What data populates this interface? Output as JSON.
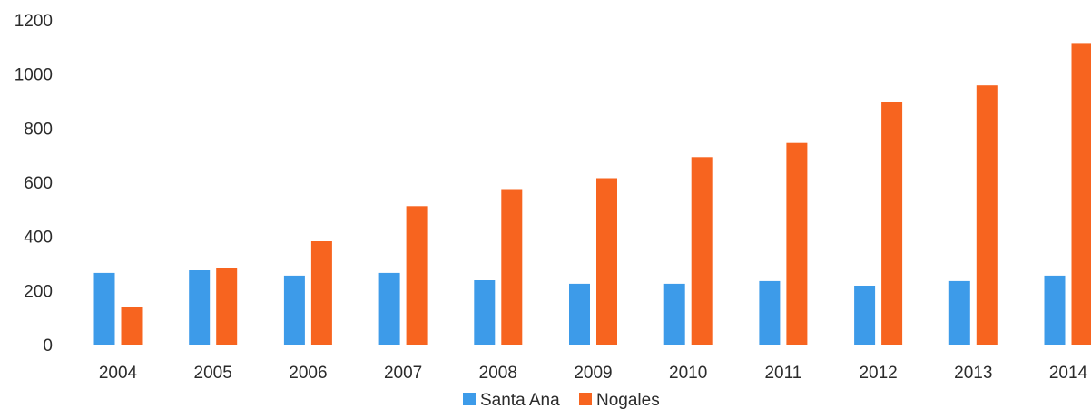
{
  "chart_data": {
    "type": "bar",
    "categories": [
      "2004",
      "2005",
      "2006",
      "2007",
      "2008",
      "2009",
      "2010",
      "2011",
      "2012",
      "2013",
      "2014"
    ],
    "series": [
      {
        "name": "Santa Ana",
        "color": "#3d9be9",
        "values": [
          265,
          275,
          255,
          265,
          238,
          225,
          225,
          235,
          218,
          235,
          255
        ]
      },
      {
        "name": "Nogales",
        "color": "#f7641f",
        "values": [
          140,
          282,
          382,
          512,
          575,
          615,
          693,
          745,
          895,
          958,
          1115
        ]
      }
    ],
    "yticks": [
      "0",
      "200",
      "400",
      "600",
      "800",
      "1000",
      "1200"
    ],
    "ylim": [
      0,
      1200
    ],
    "grid": false,
    "legend_position": "bottom-center",
    "title": "",
    "xlabel": "",
    "ylabel": ""
  }
}
